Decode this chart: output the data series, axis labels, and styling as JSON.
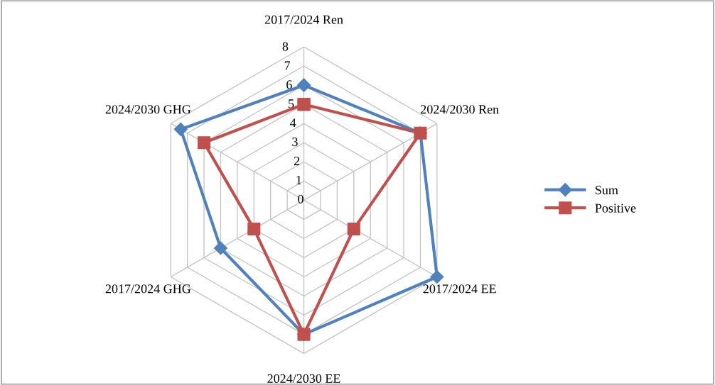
{
  "chart_data": {
    "type": "radar",
    "categories": [
      "2017/2024 Ren",
      "2024/2030 Ren",
      "2017/2024 EE",
      "2024/2030 EE",
      "2017/2024 GHG",
      "2024/2030 GHG"
    ],
    "series": [
      {
        "name": "Sum",
        "color": "#4f81bd",
        "values": [
          6,
          7,
          8,
          7,
          5,
          7.4
        ],
        "marker": "diamond"
      },
      {
        "name": "Positive",
        "color": "#c0504d",
        "values": [
          5,
          7,
          3,
          7,
          3,
          6
        ],
        "marker": "square"
      }
    ],
    "ylim": [
      0,
      8
    ],
    "yticks": [
      0,
      1,
      2,
      3,
      4,
      5,
      6,
      7,
      8
    ],
    "grid": true,
    "legend": "right"
  }
}
